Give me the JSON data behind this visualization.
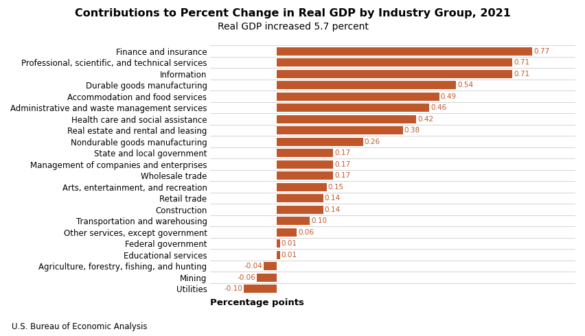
{
  "title": "Contributions to Percent Change in Real GDP by Industry Group, 2021",
  "subtitle": "Real GDP increased 5.7 percent",
  "xlabel": "Percentage points",
  "footnote": "U.S. Bureau of Economic Analysis",
  "bar_color": "#C0572B",
  "categories": [
    "Finance and insurance",
    "Professional, scientific, and technical services",
    "Information",
    "Durable goods manufacturing",
    "Accommodation and food services",
    "Administrative and waste management services",
    "Health care and social assistance",
    "Real estate and rental and leasing",
    "Nondurable goods manufacturing",
    "State and local government",
    "Management of companies and enterprises",
    "Wholesale trade",
    "Arts, entertainment, and recreation",
    "Retail trade",
    "Construction",
    "Transportation and warehousing",
    "Other services, except government",
    "Federal government",
    "Educational services",
    "Agriculture, forestry, fishing, and hunting",
    "Mining",
    "Utilities"
  ],
  "values": [
    0.77,
    0.71,
    0.71,
    0.54,
    0.49,
    0.46,
    0.42,
    0.38,
    0.26,
    0.17,
    0.17,
    0.17,
    0.15,
    0.14,
    0.14,
    0.1,
    0.06,
    0.01,
    0.01,
    -0.04,
    -0.06,
    -0.1
  ],
  "xlim": [
    -0.2,
    0.9
  ],
  "grid_color": "#cccccc",
  "background_color": "#ffffff",
  "title_fontsize": 11.5,
  "subtitle_fontsize": 10,
  "label_fontsize": 8.5,
  "tick_fontsize": 8.5,
  "xlabel_fontsize": 9.5,
  "footnote_fontsize": 8.5,
  "value_label_fontsize": 7.5,
  "bar_height": 0.72
}
